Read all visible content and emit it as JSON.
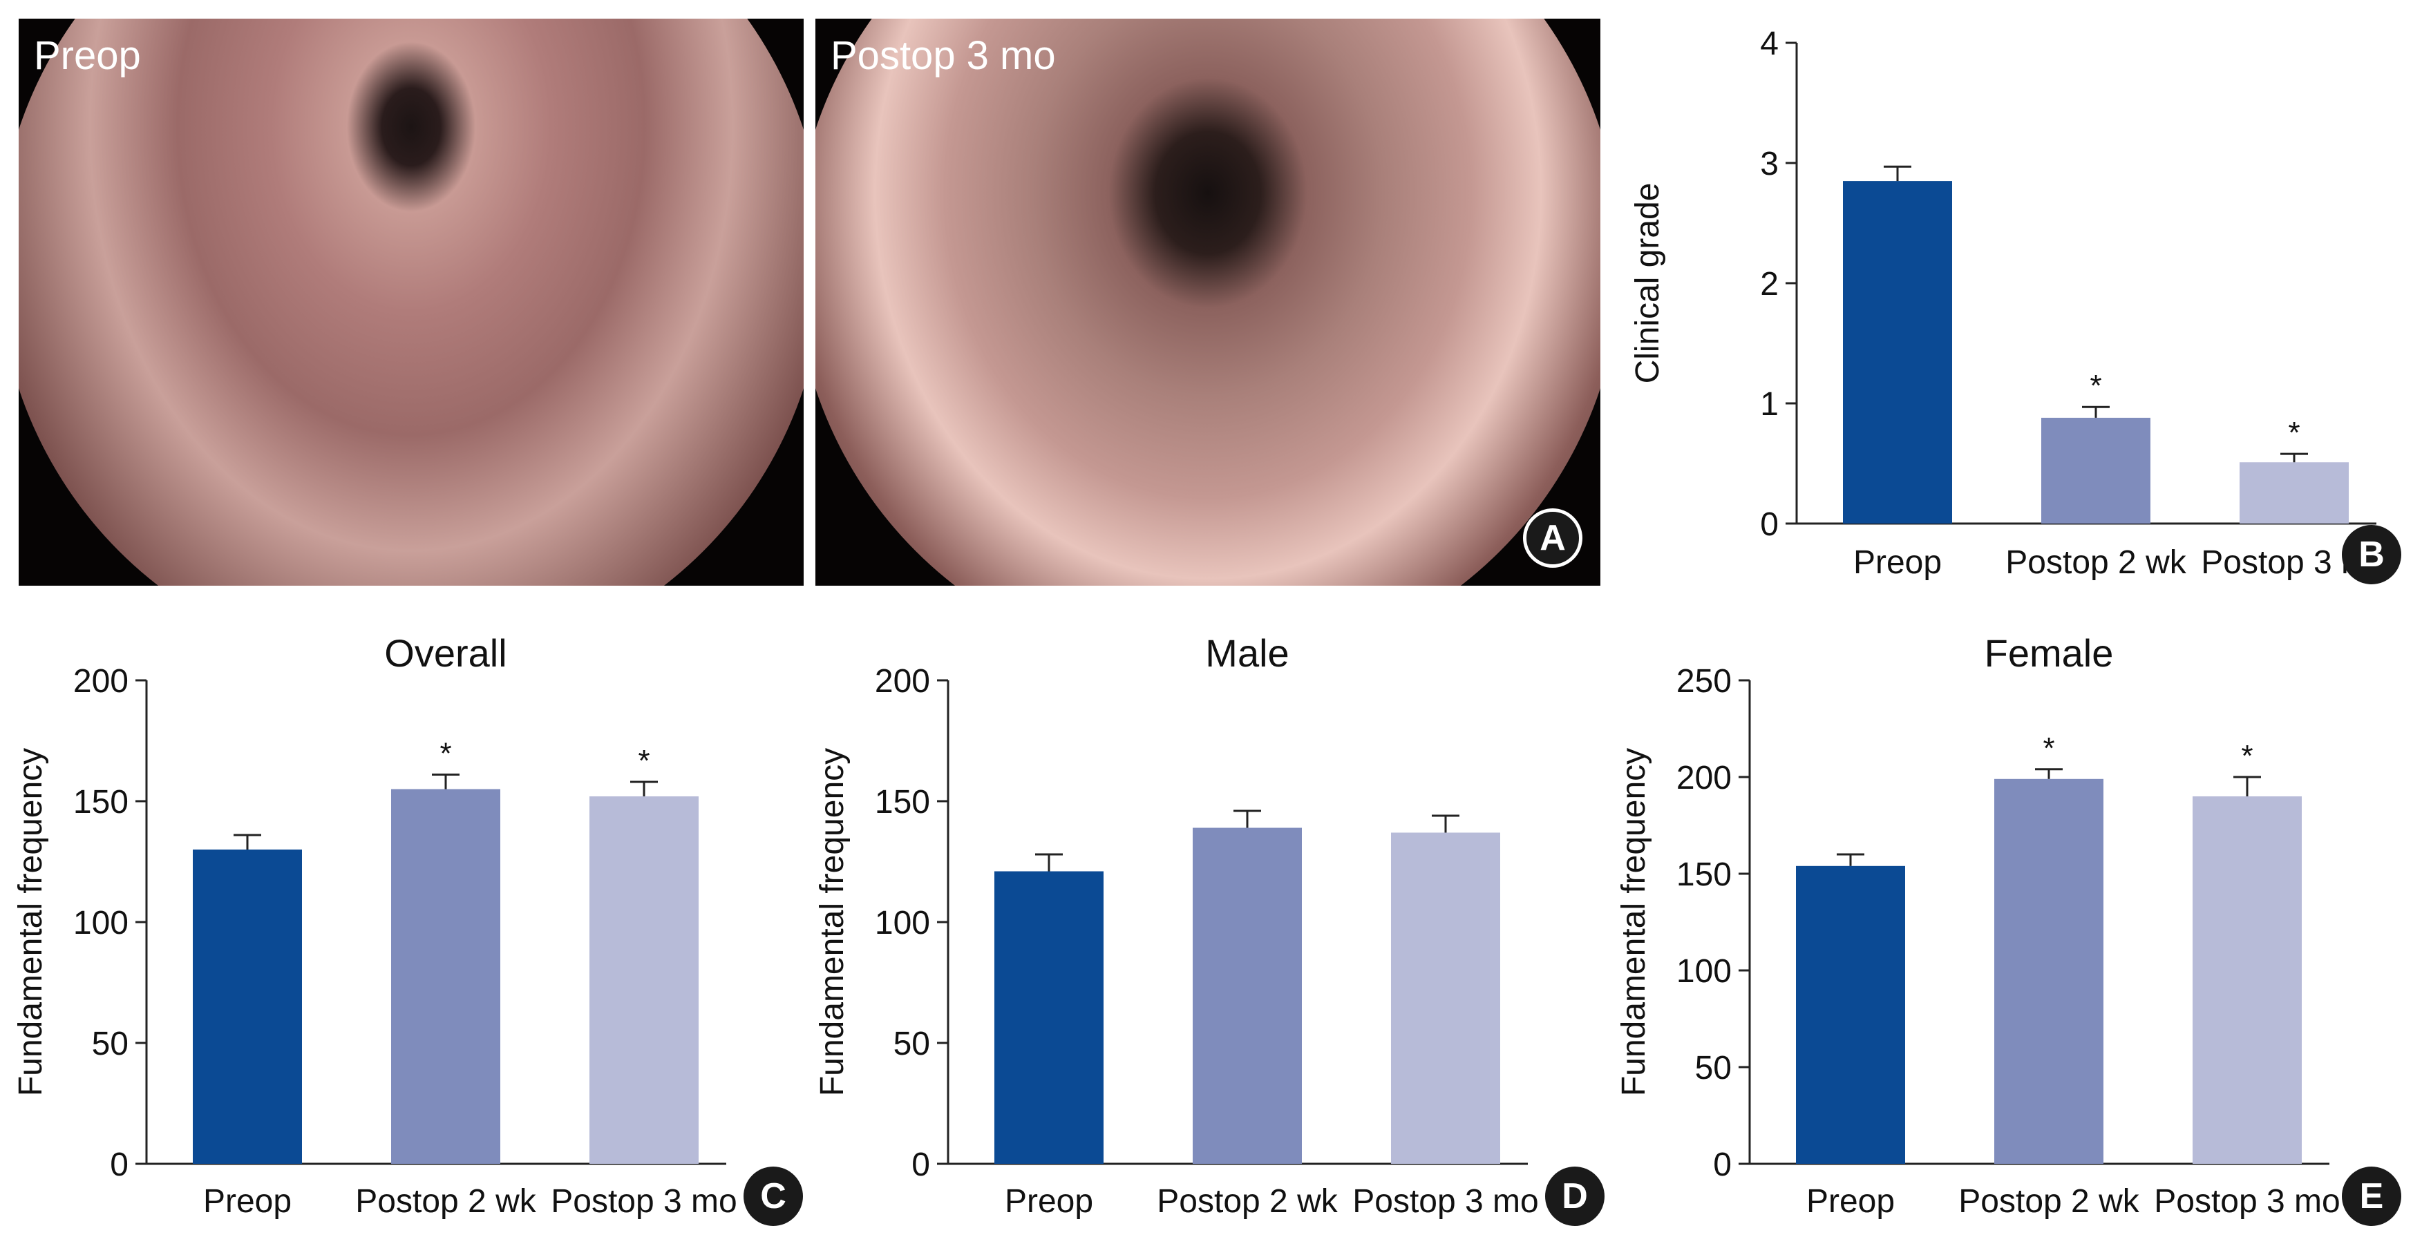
{
  "photos": [
    {
      "label": "Preop"
    },
    {
      "label": "Postop 3 mo"
    }
  ],
  "panel_labels": {
    "a": "A",
    "b": "B",
    "c": "C",
    "d": "D",
    "e": "E"
  },
  "colors": {
    "preop": "#0b4a94",
    "postop_2wk": "#7f8cbc",
    "postop_3mo": "#b7bbd8",
    "axis": "#222222"
  },
  "chart_data": [
    {
      "panel": "B",
      "type": "bar",
      "title": "",
      "xlabel": "",
      "ylabel": "Clinical grade",
      "ylim": [
        0,
        4
      ],
      "yticks": [
        0,
        1,
        2,
        3,
        4
      ],
      "categories": [
        "Preop",
        "Postop 2 wk",
        "Postop 3 mo"
      ],
      "values": [
        2.85,
        0.88,
        0.51
      ],
      "errors": [
        0.12,
        0.09,
        0.07
      ],
      "significance": [
        "",
        "*",
        "*"
      ]
    },
    {
      "panel": "C",
      "type": "bar",
      "title": "Overall",
      "xlabel": "",
      "ylabel": "Fundamental frequency",
      "ylim": [
        0,
        200
      ],
      "yticks": [
        0,
        50,
        100,
        150,
        200
      ],
      "categories": [
        "Preop",
        "Postop 2 wk",
        "Postop 3 mo"
      ],
      "values": [
        130,
        155,
        152
      ],
      "errors": [
        6,
        6,
        6
      ],
      "significance": [
        "",
        "*",
        "*"
      ]
    },
    {
      "panel": "D",
      "type": "bar",
      "title": "Male",
      "xlabel": "",
      "ylabel": "Fundamental frequency",
      "ylim": [
        0,
        200
      ],
      "yticks": [
        0,
        50,
        100,
        150,
        200
      ],
      "categories": [
        "Preop",
        "Postop 2 wk",
        "Postop 3 mo"
      ],
      "values": [
        121,
        139,
        137
      ],
      "errors": [
        7,
        7,
        7
      ],
      "significance": [
        "",
        "",
        ""
      ]
    },
    {
      "panel": "E",
      "type": "bar",
      "title": "Female",
      "xlabel": "",
      "ylabel": "Fundamental frequency",
      "ylim": [
        0,
        250
      ],
      "yticks": [
        0,
        50,
        100,
        150,
        200,
        250
      ],
      "categories": [
        "Preop",
        "Postop 2 wk",
        "Postop 3 mo"
      ],
      "values": [
        154,
        199,
        190
      ],
      "errors": [
        6,
        5,
        10
      ],
      "significance": [
        "",
        "*",
        "*"
      ]
    }
  ]
}
